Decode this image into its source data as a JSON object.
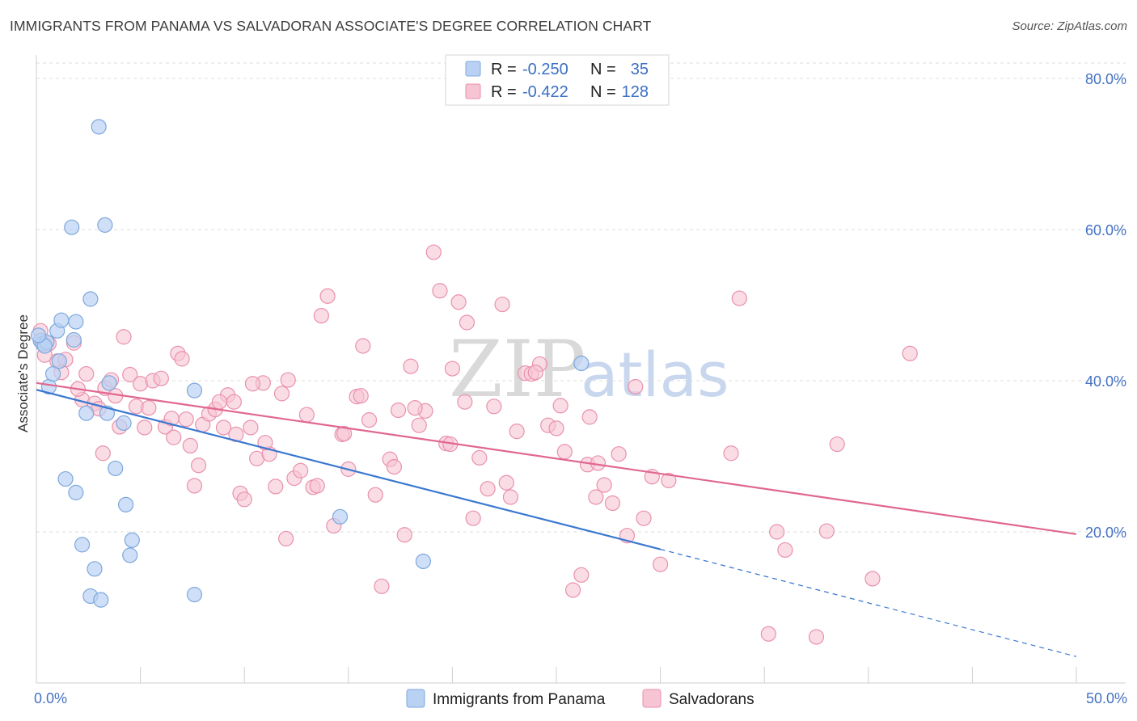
{
  "title": "IMMIGRANTS FROM PANAMA VS SALVADORAN ASSOCIATE'S DEGREE CORRELATION CHART",
  "source": "Source: ZipAtlas.com",
  "watermark": {
    "zip": "ZIP",
    "atlas": "atlas"
  },
  "colors": {
    "blue_fill": "#b9d1f3",
    "blue_stroke": "#7fa8dc",
    "blue_line": "#3a78d0",
    "pink_fill": "#f7c4d3",
    "pink_stroke": "#e991ad",
    "pink_line": "#e06790",
    "grid": "#dddddd",
    "tick_text": "#4472c4"
  },
  "legend": {
    "r_label": "R =",
    "n_label": "N =",
    "series1_r": "-0.250",
    "series1_n": "35",
    "series2_r": "-0.422",
    "series2_n": "128"
  },
  "chart_data": {
    "type": "scatter",
    "title": "IMMIGRANTS FROM PANAMA VS SALVADORAN ASSOCIATE'S DEGREE CORRELATION CHART",
    "xlabel": "",
    "ylabel": "Associate's Degree",
    "xlim": [
      0,
      50
    ],
    "ylim": [
      0,
      80
    ],
    "x_tick_labels": [
      "0.0%",
      "50.0%"
    ],
    "y_ticks": [
      20,
      40,
      60,
      80
    ],
    "y_tick_labels": [
      "20.0%",
      "40.0%",
      "60.0%",
      "80.0%"
    ],
    "legend_position": "top-center",
    "series": [
      {
        "name": "Immigrants from Panama",
        "color": "blue",
        "r": -0.25,
        "n": 35,
        "trend": {
          "x0": 0,
          "y0": 38.8,
          "x1": 30,
          "y1": 17.7,
          "dashed_to": 50,
          "dashed_y": 3.5
        },
        "points": [
          [
            0.2,
            45.3
          ],
          [
            0.3,
            44.9
          ],
          [
            0.5,
            45.1
          ],
          [
            0.4,
            44.6
          ],
          [
            0.6,
            39.2
          ],
          [
            1.0,
            46.6
          ],
          [
            0.8,
            40.9
          ],
          [
            1.2,
            48.0
          ],
          [
            1.8,
            45.4
          ],
          [
            1.1,
            42.6
          ],
          [
            1.9,
            47.8
          ],
          [
            2.6,
            50.8
          ],
          [
            1.7,
            60.3
          ],
          [
            3.3,
            60.6
          ],
          [
            3.0,
            73.6
          ],
          [
            3.5,
            39.7
          ],
          [
            3.4,
            35.7
          ],
          [
            2.4,
            35.7
          ],
          [
            4.2,
            34.4
          ],
          [
            3.8,
            28.4
          ],
          [
            1.4,
            27.0
          ],
          [
            1.9,
            25.2
          ],
          [
            4.3,
            23.6
          ],
          [
            4.6,
            18.9
          ],
          [
            2.2,
            18.3
          ],
          [
            4.5,
            16.9
          ],
          [
            2.8,
            15.1
          ],
          [
            2.6,
            11.5
          ],
          [
            3.1,
            11.0
          ],
          [
            7.6,
            11.7
          ],
          [
            7.6,
            38.7
          ],
          [
            14.6,
            22.0
          ],
          [
            18.6,
            16.1
          ],
          [
            26.2,
            42.3
          ],
          [
            0.1,
            46.0
          ]
        ]
      },
      {
        "name": "Salvadorans",
        "color": "pink",
        "r": -0.422,
        "n": 128,
        "trend": {
          "x0": 0,
          "y0": 39.7,
          "x1": 50,
          "y1": 19.7
        },
        "points": [
          [
            0.2,
            46.6
          ],
          [
            0.6,
            44.9
          ],
          [
            1.0,
            42.6
          ],
          [
            1.4,
            42.8
          ],
          [
            1.8,
            45.0
          ],
          [
            2.4,
            40.9
          ],
          [
            2.2,
            37.5
          ],
          [
            2.8,
            37.0
          ],
          [
            3.0,
            36.3
          ],
          [
            3.3,
            39.0
          ],
          [
            3.6,
            40.1
          ],
          [
            3.8,
            38.0
          ],
          [
            4.2,
            45.8
          ],
          [
            4.5,
            40.8
          ],
          [
            4.8,
            36.6
          ],
          [
            5.0,
            39.6
          ],
          [
            5.2,
            33.8
          ],
          [
            5.6,
            40.0
          ],
          [
            6.0,
            40.3
          ],
          [
            6.2,
            33.9
          ],
          [
            6.5,
            35.0
          ],
          [
            6.8,
            43.6
          ],
          [
            7.0,
            42.9
          ],
          [
            7.2,
            34.9
          ],
          [
            7.4,
            31.4
          ],
          [
            7.6,
            26.1
          ],
          [
            7.8,
            28.8
          ],
          [
            8.0,
            34.2
          ],
          [
            8.3,
            35.6
          ],
          [
            8.6,
            36.2
          ],
          [
            9.0,
            33.8
          ],
          [
            9.2,
            38.1
          ],
          [
            9.5,
            37.2
          ],
          [
            9.8,
            25.1
          ],
          [
            10.0,
            24.3
          ],
          [
            10.3,
            33.8
          ],
          [
            10.6,
            29.7
          ],
          [
            10.9,
            39.7
          ],
          [
            11.2,
            30.3
          ],
          [
            11.5,
            26.0
          ],
          [
            11.8,
            38.3
          ],
          [
            12.1,
            40.1
          ],
          [
            12.4,
            27.1
          ],
          [
            12.7,
            28.1
          ],
          [
            13.0,
            35.5
          ],
          [
            13.3,
            25.9
          ],
          [
            13.7,
            48.6
          ],
          [
            14.0,
            51.2
          ],
          [
            14.3,
            20.8
          ],
          [
            14.7,
            32.9
          ],
          [
            15.0,
            28.3
          ],
          [
            15.4,
            37.9
          ],
          [
            15.7,
            44.6
          ],
          [
            16.0,
            34.8
          ],
          [
            16.3,
            24.9
          ],
          [
            16.6,
            12.8
          ],
          [
            17.0,
            29.6
          ],
          [
            17.4,
            36.1
          ],
          [
            17.7,
            19.6
          ],
          [
            18.0,
            41.9
          ],
          [
            18.4,
            34.1
          ],
          [
            18.7,
            36.0
          ],
          [
            19.1,
            57.0
          ],
          [
            19.4,
            51.9
          ],
          [
            19.7,
            31.7
          ],
          [
            20.0,
            41.6
          ],
          [
            20.3,
            50.4
          ],
          [
            20.7,
            47.7
          ],
          [
            21.0,
            21.8
          ],
          [
            21.3,
            29.8
          ],
          [
            21.7,
            25.7
          ],
          [
            22.0,
            36.6
          ],
          [
            22.4,
            50.1
          ],
          [
            22.8,
            24.6
          ],
          [
            23.1,
            33.3
          ],
          [
            23.5,
            41.0
          ],
          [
            23.8,
            40.9
          ],
          [
            24.2,
            42.2
          ],
          [
            24.6,
            34.1
          ],
          [
            25.0,
            33.7
          ],
          [
            25.4,
            30.6
          ],
          [
            25.8,
            12.3
          ],
          [
            26.2,
            14.3
          ],
          [
            26.5,
            28.9
          ],
          [
            26.9,
            24.6
          ],
          [
            27.3,
            26.2
          ],
          [
            27.7,
            23.8
          ],
          [
            28.0,
            30.3
          ],
          [
            28.4,
            19.5
          ],
          [
            28.8,
            39.2
          ],
          [
            29.2,
            21.8
          ],
          [
            29.6,
            27.3
          ],
          [
            30.0,
            15.7
          ],
          [
            30.4,
            26.8
          ],
          [
            33.4,
            30.4
          ],
          [
            33.8,
            50.9
          ],
          [
            35.2,
            6.5
          ],
          [
            35.6,
            20.0
          ],
          [
            36.0,
            17.6
          ],
          [
            37.5,
            6.1
          ],
          [
            38.0,
            20.1
          ],
          [
            38.5,
            31.6
          ],
          [
            40.2,
            13.8
          ],
          [
            42.0,
            43.6
          ],
          [
            0.4,
            43.4
          ],
          [
            1.2,
            41.1
          ],
          [
            2.0,
            38.9
          ],
          [
            3.2,
            30.4
          ],
          [
            4.0,
            33.9
          ],
          [
            5.4,
            36.4
          ],
          [
            6.6,
            32.5
          ],
          [
            8.8,
            37.2
          ],
          [
            10.4,
            39.6
          ],
          [
            12.0,
            19.1
          ],
          [
            13.5,
            26.1
          ],
          [
            14.8,
            33.0
          ],
          [
            15.6,
            38.0
          ],
          [
            17.2,
            28.6
          ],
          [
            18.2,
            36.4
          ],
          [
            19.9,
            31.6
          ],
          [
            20.6,
            37.2
          ],
          [
            22.6,
            26.5
          ],
          [
            24.0,
            41.1
          ],
          [
            25.2,
            36.7
          ],
          [
            26.6,
            35.2
          ],
          [
            27.0,
            29.1
          ],
          [
            9.6,
            32.9
          ],
          [
            11.0,
            31.8
          ]
        ]
      }
    ]
  },
  "bottom_legend": {
    "series1": "Immigrants from Panama",
    "series2": "Salvadorans"
  }
}
